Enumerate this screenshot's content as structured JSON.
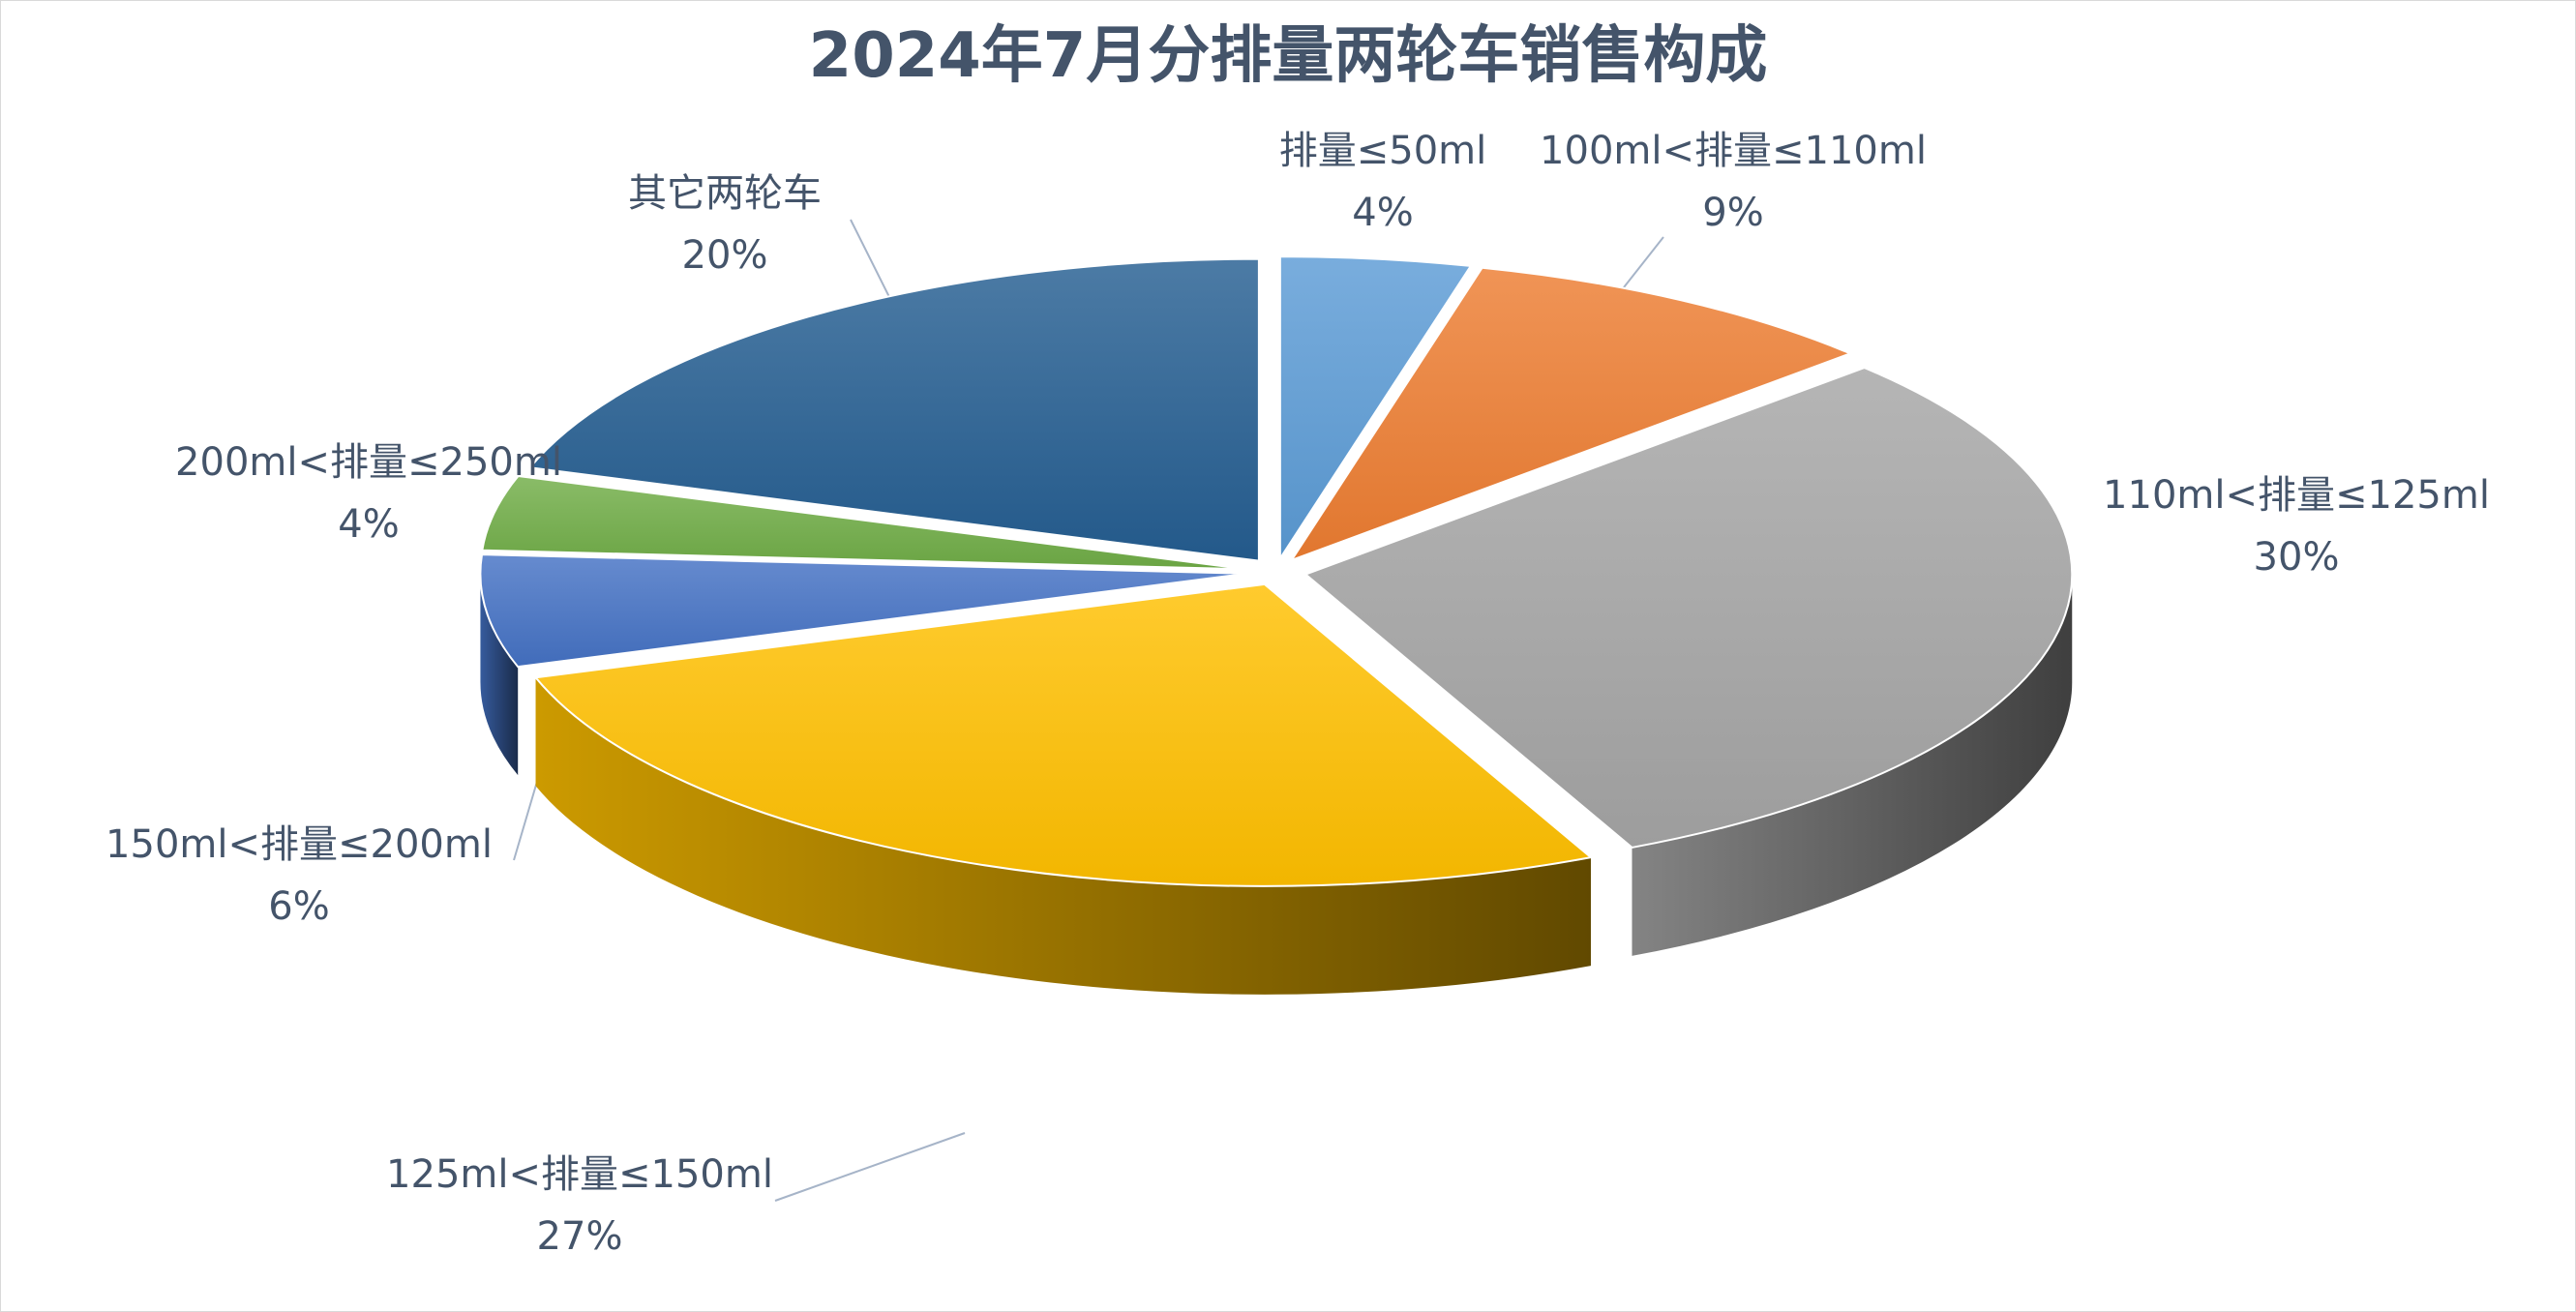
{
  "chart_data": {
    "type": "pie",
    "title": "2024年7月分排量两轮车销售构成",
    "slices": [
      {
        "label": "排量≤50ml",
        "value": 4,
        "value_label": "4%",
        "color": "#5b9bd5"
      },
      {
        "label": "100ml<排量≤110ml",
        "value": 9,
        "value_label": "9%",
        "color": "#ed7d31"
      },
      {
        "label": "110ml<排量≤125ml",
        "value": 30,
        "value_label": "30%",
        "color": "#a5a5a5"
      },
      {
        "label": "125ml<排量≤150ml",
        "value": 27,
        "value_label": "27%",
        "color": "#ffc000"
      },
      {
        "label": "150ml<排量≤200ml",
        "value": 6,
        "value_label": "6%",
        "color": "#4472c4"
      },
      {
        "label": "200ml<排量≤250ml",
        "value": 4,
        "value_label": "4%",
        "color": "#70ad47"
      },
      {
        "label": "其它两轮车",
        "value": 20,
        "value_label": "20%",
        "color": "#255e91"
      }
    ],
    "style": "3d-exploded"
  }
}
